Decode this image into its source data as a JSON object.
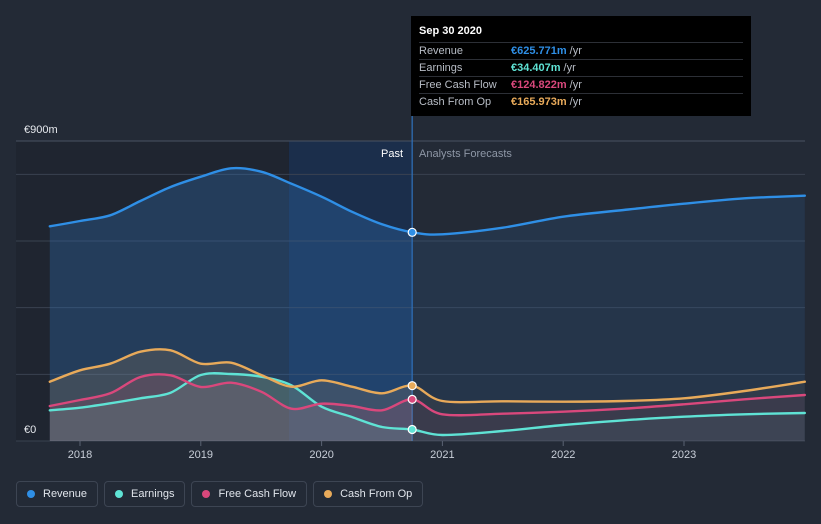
{
  "chart_data": {
    "type": "area",
    "y_axis": {
      "top_label": "€900m",
      "bottom_label": "€0",
      "ylim": [
        0,
        900
      ]
    },
    "x_ticks": [
      "2018",
      "2019",
      "2020",
      "2021",
      "2022",
      "2023"
    ],
    "x_range": [
      2017.75,
      2024.0
    ],
    "divider_x": 2020.75,
    "past_label": "Past",
    "forecast_label": "Analysts Forecasts",
    "series": [
      {
        "name": "Revenue",
        "color": "#2f8fe6",
        "x": [
          2017.75,
          2018.0,
          2018.25,
          2018.5,
          2018.75,
          2019.0,
          2019.25,
          2019.5,
          2019.75,
          2020.0,
          2020.25,
          2020.5,
          2020.75,
          2021.0,
          2021.5,
          2022.0,
          2022.5,
          2023.0,
          2023.5,
          2024.0
        ],
        "y": [
          644,
          660,
          677,
          720,
          762,
          793,
          818,
          808,
          772,
          733,
          688,
          650,
          626,
          620,
          640,
          673,
          693,
          712,
          728,
          736
        ]
      },
      {
        "name": "Earnings",
        "color": "#5fe3d5",
        "x": [
          2017.75,
          2018.0,
          2018.25,
          2018.5,
          2018.75,
          2019.0,
          2019.25,
          2019.5,
          2019.75,
          2020.0,
          2020.25,
          2020.5,
          2020.75,
          2021.0,
          2021.5,
          2022.0,
          2022.5,
          2023.0,
          2023.5,
          2024.0
        ],
        "y": [
          92,
          100,
          113,
          128,
          145,
          198,
          201,
          193,
          167,
          103,
          72,
          42,
          34.407,
          18,
          30,
          48,
          62,
          73,
          80,
          84
        ]
      },
      {
        "name": "Free Cash Flow",
        "color": "#d9487c",
        "x": [
          2017.75,
          2018.0,
          2018.25,
          2018.5,
          2018.75,
          2019.0,
          2019.25,
          2019.5,
          2019.75,
          2020.0,
          2020.25,
          2020.5,
          2020.75,
          2021.0,
          2021.5,
          2022.0,
          2022.5,
          2023.0,
          2023.5,
          2024.0
        ],
        "y": [
          105,
          123,
          143,
          192,
          197,
          162,
          175,
          148,
          97,
          112,
          105,
          92,
          124.822,
          80,
          82,
          88,
          97,
          110,
          125,
          138
        ]
      },
      {
        "name": "Cash From Op",
        "color": "#e8aa5a",
        "x": [
          2017.75,
          2018.0,
          2018.25,
          2018.5,
          2018.75,
          2019.0,
          2019.25,
          2019.5,
          2019.75,
          2020.0,
          2020.25,
          2020.5,
          2020.75,
          2021.0,
          2021.5,
          2022.0,
          2022.5,
          2023.0,
          2023.5,
          2024.0
        ],
        "y": [
          178,
          212,
          232,
          268,
          272,
          232,
          235,
          198,
          163,
          182,
          163,
          143,
          165.973,
          120,
          119,
          118,
          120,
          128,
          150,
          178
        ]
      }
    ]
  },
  "tooltip": {
    "date": "Sep 30 2020",
    "rows": [
      {
        "label": "Revenue",
        "value": "€625.771m",
        "unit": "/yr",
        "color": "#2f8fe6"
      },
      {
        "label": "Earnings",
        "value": "€34.407m",
        "unit": "/yr",
        "color": "#5fe3d5"
      },
      {
        "label": "Free Cash Flow",
        "value": "€124.822m",
        "unit": "/yr",
        "color": "#d9487c"
      },
      {
        "label": "Cash From Op",
        "value": "€165.973m",
        "unit": "/yr",
        "color": "#e8aa5a"
      }
    ]
  },
  "legend": [
    {
      "label": "Revenue",
      "color": "#2f8fe6"
    },
    {
      "label": "Earnings",
      "color": "#5fe3d5"
    },
    {
      "label": "Free Cash Flow",
      "color": "#d9487c"
    },
    {
      "label": "Cash From Op",
      "color": "#e8aa5a"
    }
  ]
}
